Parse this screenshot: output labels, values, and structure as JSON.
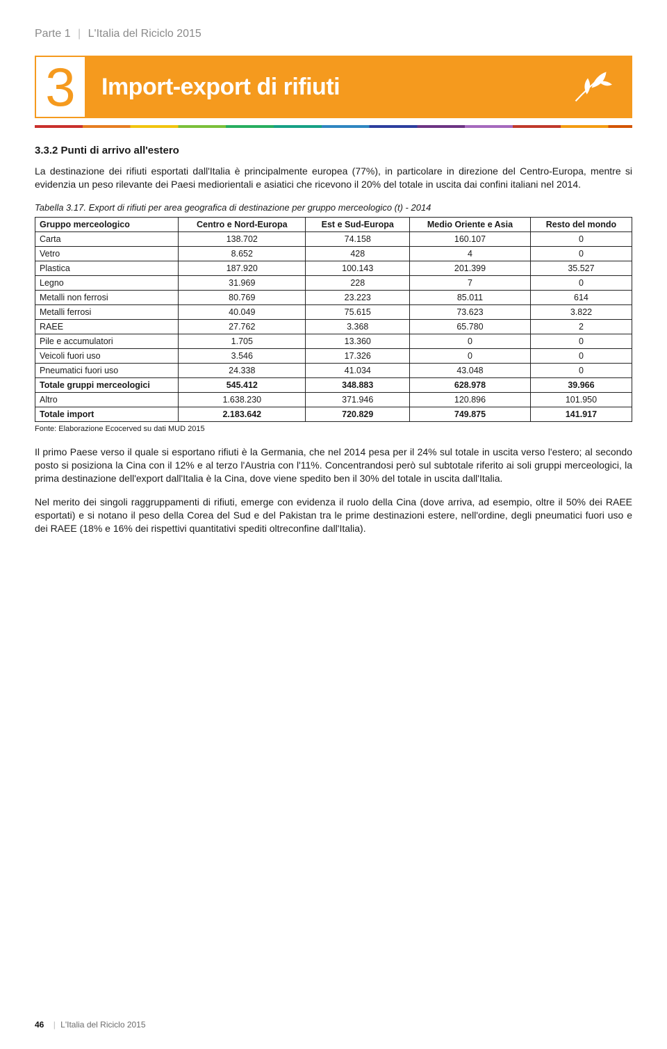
{
  "header": {
    "part": "Parte 1",
    "title": "L'Italia del Riciclo 2015"
  },
  "chapter": {
    "number": "3",
    "title": "Import-export di rifiuti"
  },
  "section": {
    "number": "3.3.2",
    "title": "Punti di arrivo all'estero"
  },
  "intro_paragraph": "La destinazione dei rifiuti esportati dall'Italia è principalmente europea (77%), in particolare in direzione del Centro-Europa, mentre si evidenzia un peso rilevante dei Paesi mediorientali e asiatici che ricevono il 20% del totale in uscita dai confini italiani nel 2014.",
  "table": {
    "caption": "Tabella 3.17. Export di rifiuti per area geografica di destinazione per gruppo merceologico (t) - 2014",
    "columns": [
      "Gruppo merceologico",
      "Centro e Nord-Europa",
      "Est e Sud-Europa",
      "Medio Oriente e Asia",
      "Resto del mondo"
    ],
    "rows": [
      {
        "cells": [
          "Carta",
          "138.702",
          "74.158",
          "160.107",
          "0"
        ],
        "bold": false
      },
      {
        "cells": [
          "Vetro",
          "8.652",
          "428",
          "4",
          "0"
        ],
        "bold": false
      },
      {
        "cells": [
          "Plastica",
          "187.920",
          "100.143",
          "201.399",
          "35.527"
        ],
        "bold": false
      },
      {
        "cells": [
          "Legno",
          "31.969",
          "228",
          "7",
          "0"
        ],
        "bold": false
      },
      {
        "cells": [
          "Metalli non ferrosi",
          "80.769",
          "23.223",
          "85.011",
          "614"
        ],
        "bold": false
      },
      {
        "cells": [
          "Metalli ferrosi",
          "40.049",
          "75.615",
          "73.623",
          "3.822"
        ],
        "bold": false
      },
      {
        "cells": [
          "RAEE",
          "27.762",
          "3.368",
          "65.780",
          "2"
        ],
        "bold": false
      },
      {
        "cells": [
          "Pile e accumulatori",
          "1.705",
          "13.360",
          "0",
          "0"
        ],
        "bold": false
      },
      {
        "cells": [
          "Veicoli fuori uso",
          "3.546",
          "17.326",
          "0",
          "0"
        ],
        "bold": false
      },
      {
        "cells": [
          "Pneumatici fuori uso",
          "24.338",
          "41.034",
          "43.048",
          "0"
        ],
        "bold": false
      },
      {
        "cells": [
          "Totale gruppi merceologici",
          "545.412",
          "348.883",
          "628.978",
          "39.966"
        ],
        "bold": true
      },
      {
        "cells": [
          "Altro",
          "1.638.230",
          "371.946",
          "120.896",
          "101.950"
        ],
        "bold": false
      },
      {
        "cells": [
          "Totale import",
          "2.183.642",
          "720.829",
          "749.875",
          "141.917"
        ],
        "bold": true
      }
    ],
    "source": "Fonte: Elaborazione Ecocerved su dati MUD 2015"
  },
  "paragraphs": [
    "Il primo Paese verso il quale si esportano rifiuti è la Germania, che nel 2014 pesa per il 24% sul totale in uscita verso l'estero; al secondo posto si posiziona la Cina con il 12% e al terzo l'Austria con l'11%. Concentrandosi però sul subtotale riferito ai soli gruppi merceologici, la prima destinazione dell'export dall'Italia è la Cina, dove viene spedito ben il 30% del totale in uscita dall'Italia.",
    "Nel merito dei singoli raggruppamenti di rifiuti, emerge con evidenza il ruolo della Cina (dove arriva, ad esempio, oltre il 50% dei RAEE esportati) e si notano il peso della Corea del Sud e del Pakistan tra le prime destinazioni estere, nell'ordine, degli pneumatici fuori uso e dei RAEE (18% e 16% dei rispettivi quantitativi spediti oltreconfine dall'Italia)."
  ],
  "footer": {
    "page": "46",
    "title": "L'Italia del Riciclo 2015"
  },
  "colors": {
    "accent": "#f59a1e",
    "text": "#1a1a1a",
    "muted": "#8a8a8a"
  }
}
